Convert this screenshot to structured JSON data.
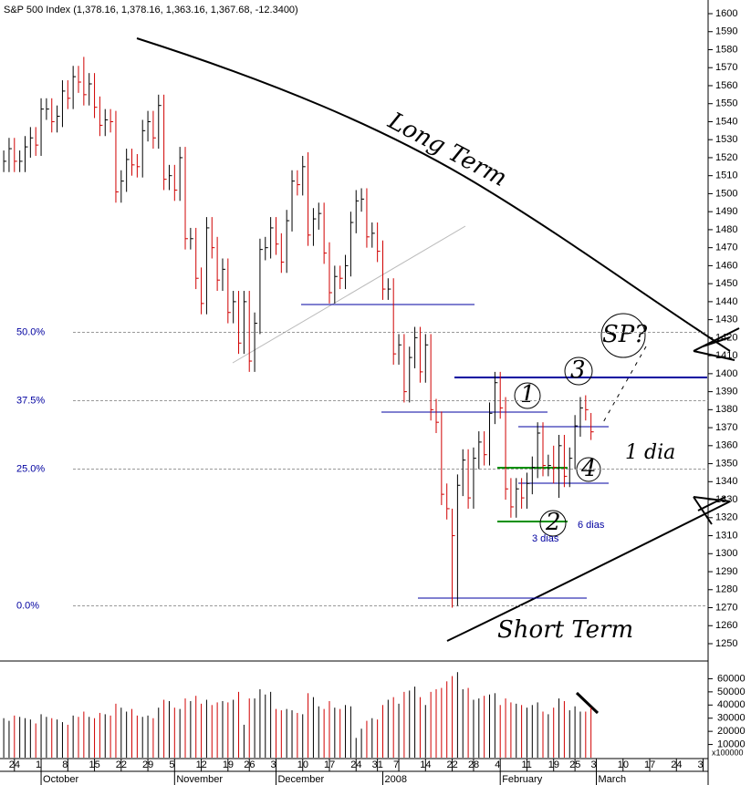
{
  "chart_data": {
    "type": "ohlc",
    "title": "S&P 500 Index (1,378.16, 1,378.16, 1,363.16, 1,367.68, -12.3400)",
    "xlim": [
      -0.7,
      134.5
    ],
    "ylim": [
      1242,
      1606
    ],
    "yticks": [
      1250,
      1260,
      1270,
      1280,
      1290,
      1300,
      1310,
      1320,
      1330,
      1340,
      1350,
      1360,
      1370,
      1380,
      1390,
      1400,
      1410,
      1420,
      1430,
      1440,
      1450,
      1460,
      1470,
      1480,
      1490,
      1500,
      1510,
      1520,
      1530,
      1540,
      1550,
      1560,
      1570,
      1580,
      1590,
      1600
    ],
    "xticks": [
      {
        "value": 2,
        "label": "24"
      },
      {
        "value": 7,
        "label": "1"
      },
      {
        "value": 12,
        "label": "8"
      },
      {
        "value": 17,
        "label": "15"
      },
      {
        "value": 22,
        "label": "22"
      },
      {
        "value": 27,
        "label": "29"
      },
      {
        "value": 32,
        "label": "5"
      },
      {
        "value": 37,
        "label": "12"
      },
      {
        "value": 42,
        "label": "19"
      },
      {
        "value": 46,
        "label": "26"
      },
      {
        "value": 51,
        "label": "3"
      },
      {
        "value": 56,
        "label": "10"
      },
      {
        "value": 61,
        "label": "17"
      },
      {
        "value": 66,
        "label": "24"
      },
      {
        "value": 70,
        "label": "31"
      },
      {
        "value": 74,
        "label": "7"
      },
      {
        "value": 79,
        "label": "14"
      },
      {
        "value": 84,
        "label": "22"
      },
      {
        "value": 88,
        "label": "28"
      },
      {
        "value": 93,
        "label": "4"
      },
      {
        "value": 98,
        "label": "11"
      },
      {
        "value": 103,
        "label": "19"
      },
      {
        "value": 107,
        "label": "25"
      },
      {
        "value": 111,
        "label": "3"
      },
      {
        "value": 116,
        "label": "10"
      },
      {
        "value": 121,
        "label": "17"
      },
      {
        "value": 126,
        "label": "24"
      },
      {
        "value": 131,
        "label": "3"
      }
    ],
    "months": [
      {
        "value": 7,
        "label": "October"
      },
      {
        "value": 32,
        "label": "November"
      },
      {
        "value": 51,
        "label": "December"
      },
      {
        "value": 71,
        "label": "2008"
      },
      {
        "value": 93,
        "label": "February"
      },
      {
        "value": 111,
        "label": "March"
      }
    ],
    "high": [
      1524,
      1531,
      1531,
      1524,
      1532,
      1537,
      1537,
      1553,
      1553,
      1553,
      1549,
      1563,
      1563,
      1571,
      1571,
      1576,
      1567,
      1567,
      1554,
      1547,
      1547,
      1546,
      1513,
      1525,
      1525,
      1522,
      1541,
      1546,
      1546,
      1555,
      1555,
      1516,
      1516,
      1526,
      1526,
      1481,
      1481,
      1459,
      1487,
      1487,
      1476,
      1464,
      1464,
      1446,
      1446,
      1446,
      1446,
      1434,
      1475,
      1476,
      1487,
      1487,
      1478,
      1491,
      1513,
      1513,
      1521,
      1523,
      1492,
      1495,
      1495,
      1473,
      1460,
      1460,
      1466,
      1490,
      1502,
      1503,
      1503,
      1484,
      1484,
      1474,
      1453,
      1453,
      1422,
      1422,
      1415,
      1426,
      1426,
      1422,
      1422,
      1386,
      1379,
      1339,
      1325,
      1344,
      1358,
      1358,
      1359,
      1368,
      1368,
      1384,
      1401,
      1401,
      1387,
      1342,
      1342,
      1342,
      1345,
      1354,
      1373,
      1373,
      1355,
      1360,
      1366,
      1366,
      1359,
      1377,
      1387,
      1388,
      1378.16
    ],
    "low": [
      1512,
      1512,
      1512,
      1512,
      1512,
      1520,
      1521,
      1521,
      1541,
      1534,
      1534,
      1537,
      1547,
      1547,
      1556,
      1549,
      1549,
      1542,
      1532,
      1532,
      1534,
      1495,
      1495,
      1501,
      1510,
      1509,
      1509,
      1529,
      1525,
      1525,
      1502,
      1502,
      1496,
      1496,
      1469,
      1469,
      1447,
      1433,
      1433,
      1464,
      1446,
      1446,
      1428,
      1428,
      1411,
      1411,
      1401,
      1401,
      1422,
      1463,
      1464,
      1466,
      1456,
      1456,
      1479,
      1499,
      1499,
      1471,
      1471,
      1480,
      1461,
      1439,
      1439,
      1447,
      1447,
      1454,
      1478,
      1490,
      1470,
      1470,
      1462,
      1441,
      1441,
      1405,
      1405,
      1384,
      1384,
      1403,
      1395,
      1395,
      1374,
      1367,
      1327,
      1319,
      1270,
      1271,
      1332,
      1325,
      1325,
      1347,
      1349,
      1349,
      1372,
      1375,
      1330,
      1320,
      1320,
      1325,
      1325,
      1333,
      1342,
      1343,
      1343,
      1339,
      1331,
      1337,
      1337,
      1347,
      1365,
      1374,
      1363.16
    ],
    "close": [
      1518,
      1525,
      1518,
      1518,
      1526,
      1531,
      1527,
      1547,
      1547,
      1540,
      1543,
      1557,
      1553,
      1565,
      1562,
      1555,
      1561,
      1548,
      1538,
      1541,
      1540,
      1501,
      1507,
      1519,
      1516,
      1515,
      1535,
      1540,
      1531,
      1549,
      1508,
      1510,
      1502,
      1520,
      1475,
      1475,
      1453,
      1439,
      1481,
      1470,
      1452,
      1458,
      1434,
      1440,
      1417,
      1440,
      1407,
      1428,
      1469,
      1470,
      1481,
      1472,
      1462,
      1485,
      1507,
      1505,
      1515,
      1477,
      1486,
      1489,
      1467,
      1445,
      1454,
      1453,
      1460,
      1484,
      1496,
      1497,
      1476,
      1478,
      1468,
      1447,
      1447,
      1411,
      1416,
      1390,
      1409,
      1420,
      1401,
      1416,
      1380,
      1373,
      1333,
      1325,
      1310,
      1338,
      1352,
      1331,
      1353,
      1362,
      1355,
      1378,
      1395,
      1381,
      1336,
      1326,
      1336,
      1331,
      1339,
      1348,
      1367,
      1349,
      1349,
      1348,
      1360,
      1343,
      1353,
      1371,
      1381,
      1380,
      1367.68
    ],
    "fib": [
      {
        "value": 1423,
        "label": "50.0%"
      },
      {
        "value": 1385,
        "label": "37.5%"
      },
      {
        "value": 1347,
        "label": "25.0%"
      },
      {
        "value": 1271,
        "label": "0.0%"
      }
    ],
    "volume": {
      "unit_label": "x100000",
      "ylim": [
        0,
        70000
      ],
      "yticks": [
        10000,
        20000,
        30000,
        40000,
        50000,
        60000
      ],
      "values": [
        30000,
        28000,
        32000,
        31000,
        30000,
        29000,
        26000,
        33000,
        31000,
        30000,
        29000,
        27000,
        25000,
        32000,
        31000,
        35000,
        31000,
        30000,
        34000,
        33000,
        32000,
        41000,
        38000,
        35000,
        37000,
        32000,
        31000,
        32000,
        30000,
        38000,
        44000,
        43000,
        38000,
        37000,
        45000,
        43000,
        47000,
        41000,
        44000,
        40000,
        42000,
        43000,
        42000,
        44000,
        50000,
        25000,
        45000,
        45000,
        52000,
        48000,
        50000,
        37000,
        36000,
        37000,
        36000,
        34000,
        33000,
        49000,
        46000,
        39000,
        37000,
        43000,
        38000,
        37000,
        40000,
        39000,
        15000,
        22000,
        28000,
        30000,
        29000,
        40000,
        44000,
        46000,
        41000,
        50000,
        51000,
        54000,
        46000,
        40000,
        50000,
        52000,
        53000,
        58000,
        62000,
        65000,
        52000,
        53000,
        44000,
        45000,
        47000,
        48000,
        49000,
        40000,
        45000,
        42000,
        41000,
        40000,
        38000,
        40000,
        42000,
        35000,
        33000,
        38000,
        45000,
        43000,
        36000,
        39000,
        35000,
        35000,
        38000
      ]
    },
    "annotations": {
      "long": "Long Term",
      "short": "Short Term",
      "n1": "1",
      "n2": "2",
      "n3": "3",
      "n4": "4",
      "sp": "SP?",
      "dia": "1 dia",
      "d6": "6 dias",
      "d3": "3 dias"
    }
  }
}
